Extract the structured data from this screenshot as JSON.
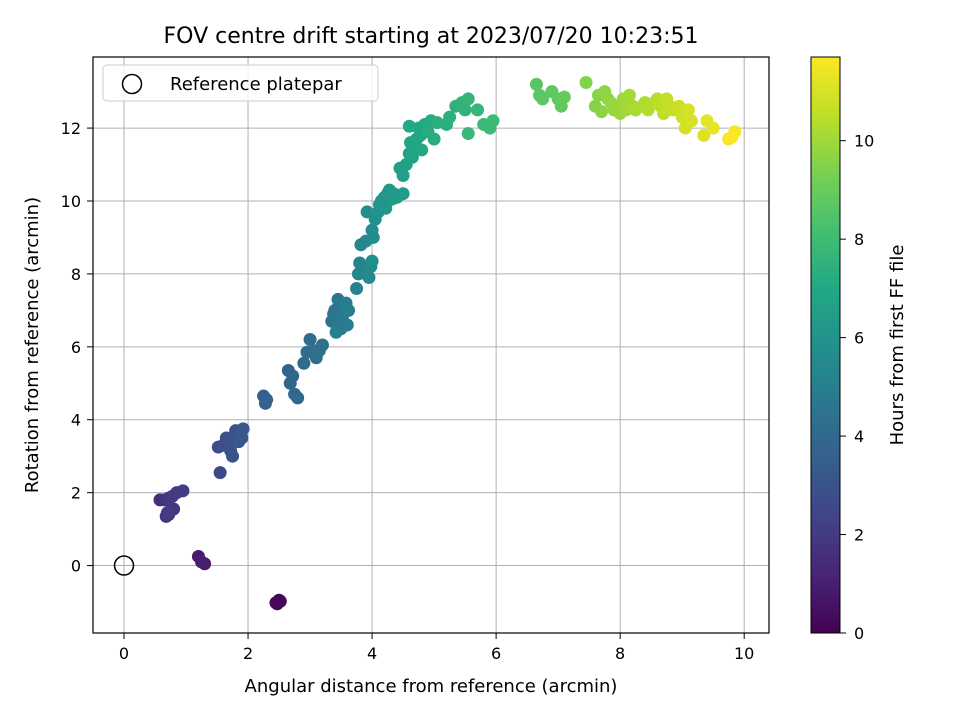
{
  "chart_data": {
    "type": "scatter",
    "title": "FOV centre drift starting at 2023/07/20 10:23:51",
    "xlabel": "Angular distance from reference (arcmin)",
    "ylabel": "Rotation from reference (arcmin)",
    "colorbar_label": "Hours from first FF file",
    "xlim": [
      -0.5,
      10.4
    ],
    "ylim": [
      -1.85,
      13.95
    ],
    "xticks": [
      0,
      2,
      4,
      6,
      8,
      10
    ],
    "yticks": [
      0,
      2,
      4,
      6,
      8,
      10,
      12
    ],
    "colorbar_range": [
      0,
      11.7
    ],
    "colorbar_ticks": [
      0,
      2,
      4,
      6,
      8,
      10
    ],
    "colormap": "viridis",
    "grid": true,
    "legend": {
      "label": "Reference platepar",
      "placement": "top-left"
    },
    "reference_point": {
      "x": 0,
      "y": 0
    },
    "points": [
      [
        2.48,
        -1.0,
        0.05
      ],
      [
        2.5,
        -0.95,
        0.1
      ],
      [
        2.47,
        -1.05,
        0.15
      ],
      [
        2.52,
        -0.98,
        0.2
      ],
      [
        2.45,
        -1.02,
        0.25
      ],
      [
        1.2,
        0.25,
        0.8
      ],
      [
        1.3,
        0.05,
        0.9
      ],
      [
        1.25,
        0.1,
        1.0
      ],
      [
        0.58,
        1.8,
        1.5
      ],
      [
        0.65,
        1.8,
        1.6
      ],
      [
        0.72,
        1.4,
        1.7
      ],
      [
        0.68,
        1.35,
        1.75
      ],
      [
        0.75,
        1.5,
        1.8
      ],
      [
        0.8,
        1.55,
        1.85
      ],
      [
        0.72,
        1.85,
        1.9
      ],
      [
        0.78,
        1.9,
        1.95
      ],
      [
        0.85,
        2.0,
        2.0
      ],
      [
        0.95,
        2.05,
        2.1
      ],
      [
        0.7,
        1.45,
        2.05
      ],
      [
        1.55,
        2.55,
        2.6
      ],
      [
        1.52,
        3.25,
        2.7
      ],
      [
        1.6,
        3.3,
        2.8
      ],
      [
        1.65,
        3.5,
        2.85
      ],
      [
        1.7,
        3.4,
        2.9
      ],
      [
        1.75,
        3.0,
        2.95
      ],
      [
        1.72,
        3.15,
        3.0
      ],
      [
        1.8,
        3.7,
        3.05
      ],
      [
        1.85,
        3.4,
        3.1
      ],
      [
        1.9,
        3.5,
        3.15
      ],
      [
        1.92,
        3.75,
        3.2
      ],
      [
        1.88,
        3.6,
        3.25
      ],
      [
        2.25,
        4.65,
        3.5
      ],
      [
        2.28,
        4.45,
        3.55
      ],
      [
        2.3,
        4.55,
        3.6
      ],
      [
        2.65,
        5.35,
        3.8
      ],
      [
        2.68,
        5.0,
        3.85
      ],
      [
        2.72,
        5.2,
        3.9
      ],
      [
        2.75,
        4.7,
        3.95
      ],
      [
        2.8,
        4.6,
        4.0
      ],
      [
        2.9,
        5.55,
        4.05
      ],
      [
        2.95,
        5.85,
        4.1
      ],
      [
        3.0,
        6.2,
        4.15
      ],
      [
        3.05,
        5.9,
        4.2
      ],
      [
        3.1,
        5.7,
        4.25
      ],
      [
        3.15,
        5.9,
        4.3
      ],
      [
        3.2,
        6.05,
        4.35
      ],
      [
        3.35,
        6.7,
        4.5
      ],
      [
        3.38,
        6.9,
        4.55
      ],
      [
        3.4,
        7.0,
        4.6
      ],
      [
        3.45,
        7.3,
        4.65
      ],
      [
        3.5,
        6.5,
        4.7
      ],
      [
        3.52,
        6.8,
        4.75
      ],
      [
        3.55,
        7.1,
        4.8
      ],
      [
        3.6,
        6.6,
        4.85
      ],
      [
        3.62,
        7.0,
        4.9
      ],
      [
        3.58,
        7.2,
        4.95
      ],
      [
        3.42,
        6.4,
        5.0
      ],
      [
        3.75,
        7.6,
        5.2
      ],
      [
        3.78,
        8.0,
        5.25
      ],
      [
        3.8,
        8.3,
        5.3
      ],
      [
        3.82,
        8.8,
        5.35
      ],
      [
        3.85,
        8.1,
        5.4
      ],
      [
        3.9,
        8.9,
        5.45
      ],
      [
        3.95,
        7.9,
        5.5
      ],
      [
        3.98,
        8.2,
        5.55
      ],
      [
        4.0,
        9.2,
        5.6
      ],
      [
        4.02,
        9.0,
        5.65
      ],
      [
        4.0,
        8.35,
        5.7
      ],
      [
        3.92,
        9.7,
        5.75
      ],
      [
        4.05,
        9.5,
        5.85
      ],
      [
        4.1,
        9.7,
        5.9
      ],
      [
        4.12,
        9.9,
        5.95
      ],
      [
        4.15,
        10.0,
        6.0
      ],
      [
        4.2,
        10.1,
        6.05
      ],
      [
        4.22,
        9.8,
        6.1
      ],
      [
        4.25,
        10.2,
        6.15
      ],
      [
        4.28,
        10.3,
        6.2
      ],
      [
        4.32,
        10.05,
        6.25
      ],
      [
        4.35,
        10.2,
        6.3
      ],
      [
        4.4,
        10.1,
        6.35
      ],
      [
        4.5,
        10.2,
        6.4
      ],
      [
        4.45,
        10.9,
        6.5
      ],
      [
        4.5,
        10.7,
        6.55
      ],
      [
        4.55,
        11.0,
        6.6
      ],
      [
        4.6,
        11.3,
        6.65
      ],
      [
        4.62,
        11.6,
        6.7
      ],
      [
        4.65,
        11.2,
        6.75
      ],
      [
        4.7,
        11.5,
        6.8
      ],
      [
        4.72,
        11.7,
        6.85
      ],
      [
        4.75,
        12.0,
        6.9
      ],
      [
        4.78,
        11.8,
        6.95
      ],
      [
        4.8,
        11.4,
        7.0
      ],
      [
        4.6,
        12.05,
        7.05
      ],
      [
        4.85,
        12.1,
        7.1
      ],
      [
        4.9,
        11.9,
        7.15
      ],
      [
        4.95,
        12.2,
        7.2
      ],
      [
        5.0,
        11.7,
        7.25
      ],
      [
        5.05,
        12.15,
        7.3
      ],
      [
        5.2,
        12.1,
        7.35
      ],
      [
        5.25,
        12.3,
        7.4
      ],
      [
        5.35,
        12.6,
        7.5
      ],
      [
        5.45,
        12.7,
        7.55
      ],
      [
        5.5,
        12.5,
        7.6
      ],
      [
        5.55,
        12.8,
        7.65
      ],
      [
        5.7,
        12.5,
        7.7
      ],
      [
        5.55,
        11.85,
        7.8
      ],
      [
        5.8,
        12.1,
        7.85
      ],
      [
        5.9,
        12.0,
        7.9
      ],
      [
        5.95,
        12.2,
        7.95
      ],
      [
        6.65,
        13.2,
        8.6
      ],
      [
        6.7,
        12.9,
        8.65
      ],
      [
        6.75,
        12.8,
        8.7
      ],
      [
        6.9,
        13.0,
        8.75
      ],
      [
        7.0,
        12.8,
        8.8
      ],
      [
        7.05,
        12.6,
        8.85
      ],
      [
        7.1,
        12.85,
        8.9
      ],
      [
        7.45,
        13.25,
        9.5
      ],
      [
        7.6,
        12.6,
        9.55
      ],
      [
        7.65,
        12.9,
        9.6
      ],
      [
        7.7,
        12.45,
        9.65
      ],
      [
        7.75,
        13.0,
        9.7
      ],
      [
        7.8,
        12.8,
        9.75
      ],
      [
        7.85,
        12.7,
        9.8
      ],
      [
        7.9,
        12.5,
        9.85
      ],
      [
        7.95,
        12.6,
        9.9
      ],
      [
        8.0,
        12.4,
        9.95
      ],
      [
        8.05,
        12.8,
        10.0
      ],
      [
        8.1,
        12.5,
        10.05
      ],
      [
        8.15,
        12.9,
        10.1
      ],
      [
        8.2,
        12.6,
        10.15
      ],
      [
        8.25,
        12.5,
        10.2
      ],
      [
        8.35,
        12.6,
        10.25
      ],
      [
        8.4,
        12.7,
        10.3
      ],
      [
        8.45,
        12.5,
        10.35
      ],
      [
        8.55,
        12.7,
        10.4
      ],
      [
        8.6,
        12.8,
        10.45
      ],
      [
        8.65,
        12.6,
        10.5
      ],
      [
        8.7,
        12.4,
        10.55
      ],
      [
        8.75,
        12.8,
        10.6
      ],
      [
        8.8,
        12.6,
        10.65
      ],
      [
        8.85,
        12.5,
        10.7
      ],
      [
        8.95,
        12.6,
        10.8
      ],
      [
        9.0,
        12.3,
        10.85
      ],
      [
        9.05,
        12.0,
        10.9
      ],
      [
        9.1,
        12.5,
        10.95
      ],
      [
        9.15,
        12.2,
        11.0
      ],
      [
        9.35,
        11.8,
        11.1
      ],
      [
        9.4,
        12.2,
        11.2
      ],
      [
        9.5,
        12.0,
        11.3
      ],
      [
        9.75,
        11.7,
        11.5
      ],
      [
        9.85,
        11.9,
        11.6
      ],
      [
        9.8,
        11.75,
        11.65
      ]
    ]
  }
}
